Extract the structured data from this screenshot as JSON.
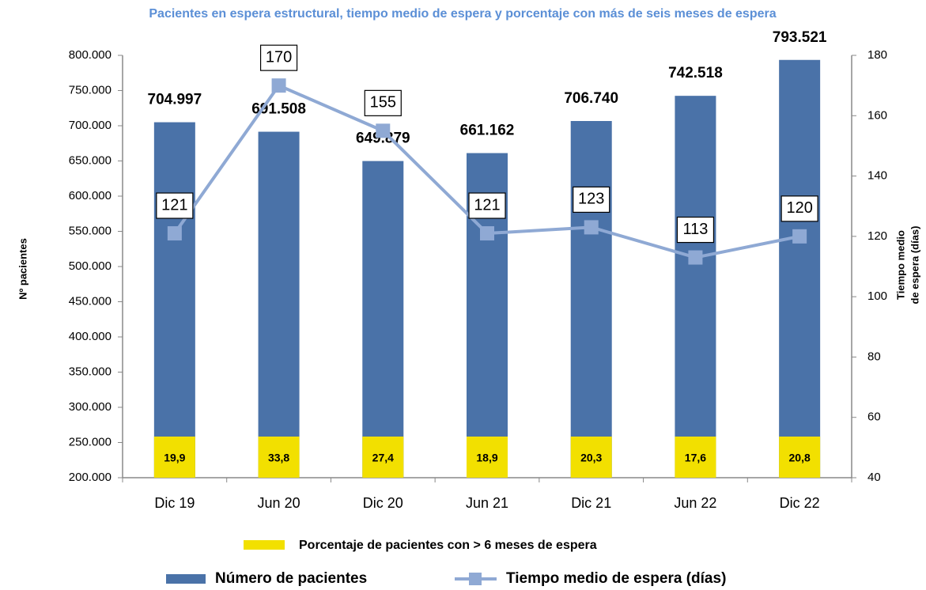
{
  "chart_data": {
    "type": "bar-line",
    "title": "Pacientes en espera estructural, tiempo medio de espera  y porcentaje con más de seis meses de espera",
    "ylabel": "Nº pacientes",
    "y2label": [
      "Tiempo medio",
      "de espera (días)"
    ],
    "categories": [
      "Dic 19",
      "Jun 20",
      "Dic 20",
      "Jun 21",
      "Dic 21",
      "Jun 22",
      "Dic 22"
    ],
    "ylim": [
      200000,
      800000
    ],
    "yticks": [
      {
        "value": 200000,
        "label": "200.000"
      },
      {
        "value": 250000,
        "label": "250.000"
      },
      {
        "value": 300000,
        "label": "300.000"
      },
      {
        "value": 350000,
        "label": "350.000"
      },
      {
        "value": 400000,
        "label": "400.000"
      },
      {
        "value": 450000,
        "label": "450.000"
      },
      {
        "value": 500000,
        "label": "500.000"
      },
      {
        "value": 550000,
        "label": "550.000"
      },
      {
        "value": 600000,
        "label": "600.000"
      },
      {
        "value": 650000,
        "label": "650.000"
      },
      {
        "value": 700000,
        "label": "700.000"
      },
      {
        "value": 750000,
        "label": "750.000"
      },
      {
        "value": 800000,
        "label": "800.000"
      }
    ],
    "y2lim": [
      40,
      180
    ],
    "y2ticks": [
      40,
      60,
      80,
      100,
      120,
      140,
      160,
      180
    ],
    "series": [
      {
        "name": "Número de pacientes",
        "type": "bar",
        "color": "#4a72a8",
        "values": [
          704997,
          691508,
          649879,
          661162,
          706740,
          742518,
          793521
        ],
        "value_labels": [
          "704.997",
          "691.508",
          "649.879",
          "661.162",
          "706.740",
          "742.518",
          "793.521"
        ]
      },
      {
        "name": "Tiempo medio de espera (días)",
        "type": "line",
        "axis": "y2",
        "color": "#8fa9d4",
        "values": [
          121,
          170,
          155,
          121,
          123,
          113,
          120
        ]
      },
      {
        "name": "Porcentaje de pacientes con > 6 meses de espera",
        "type": "label-box",
        "color": "#f2e000",
        "values": [
          19.9,
          33.8,
          27.4,
          18.9,
          20.3,
          17.6,
          20.8
        ],
        "value_labels": [
          "19,9",
          "33,8",
          "27,4",
          "18,9",
          "20,3",
          "17,6",
          "20,8"
        ]
      }
    ]
  }
}
